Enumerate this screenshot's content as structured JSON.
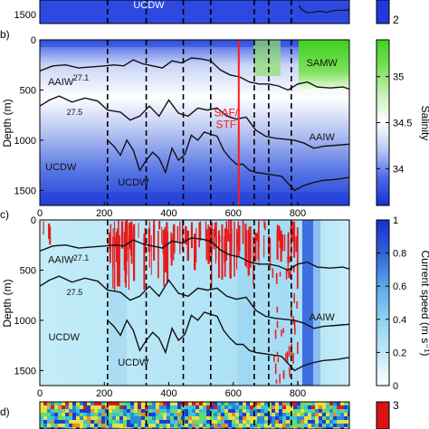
{
  "chart_data": [
    {
      "panel": "",
      "type": "heatmap",
      "ylabel": "",
      "ytick_labels": [
        "1500"
      ],
      "colorbar": {
        "label": "",
        "tick_labels": [
          "2"
        ],
        "colors": [
          "#1f2fd8",
          "#2f4fe8"
        ]
      },
      "water_masses": [
        {
          "label": "UCDW",
          "x": 290,
          "y": 1400
        }
      ]
    },
    {
      "panel": "(b)",
      "type": "heatmap",
      "title": "",
      "xlabel": "",
      "ylabel": "Depth (m)",
      "xlim": [
        0,
        960
      ],
      "ylim": [
        1650,
        0
      ],
      "xticks": [
        0,
        200,
        400,
        600,
        800
      ],
      "xtick_labels": [
        "0",
        "200",
        "400",
        "600",
        "800"
      ],
      "yticks": [
        0,
        500,
        1000,
        1500
      ],
      "ytick_labels": [
        "0",
        "500",
        "1000",
        "1500"
      ],
      "section_breaks": [
        210,
        330,
        445,
        530,
        665,
        710,
        780
      ],
      "front_line": {
        "x": 617,
        "label": "SAF/\nSTF",
        "label_lines": [
          "SAF/",
          "STF"
        ],
        "color": "#ff1a1a"
      },
      "colorbar": {
        "label": "Salinity",
        "range": [
          33.6,
          35.4
        ],
        "ticks": [
          34,
          34.5,
          35
        ],
        "tick_labels": [
          "34",
          "34.5",
          "35"
        ],
        "colors": [
          "#1530d8",
          "#4a6ae8",
          "#b8c8f4",
          "#ffffff",
          "#c8f0b8",
          "#7ee05a",
          "#3cd11e"
        ]
      },
      "contours": [
        {
          "label": "27.1",
          "x": [
            0,
            40,
            80,
            120,
            160,
            200,
            230,
            260,
            290,
            320,
            350,
            380,
            410,
            440,
            470,
            500,
            530,
            560,
            590,
            620,
            650,
            680,
            710,
            740,
            770,
            800,
            830,
            860,
            900,
            940,
            960
          ],
          "y": [
            310,
            260,
            250,
            280,
            270,
            260,
            250,
            260,
            200,
            240,
            260,
            280,
            210,
            230,
            180,
            190,
            210,
            300,
            350,
            370,
            420,
            440,
            440,
            460,
            500,
            440,
            420,
            470,
            480,
            470,
            490
          ]
        },
        {
          "label": "27.5",
          "x": [
            0,
            30,
            60,
            100,
            140,
            180,
            210,
            250,
            280,
            310,
            340,
            370,
            400,
            430,
            460,
            490,
            520,
            550,
            580,
            610,
            640,
            670,
            700,
            730,
            760,
            790,
            820,
            850,
            880,
            920,
            960
          ],
          "y": [
            660,
            600,
            560,
            620,
            580,
            610,
            700,
            720,
            800,
            760,
            660,
            760,
            600,
            730,
            760,
            680,
            700,
            680,
            760,
            790,
            770,
            900,
            960,
            980,
            990,
            1000,
            1030,
            1080,
            1060,
            1050,
            1040
          ]
        },
        {
          "label": "",
          "x": [
            210,
            230,
            250,
            270,
            290,
            310,
            330,
            350,
            370,
            390,
            410,
            430,
            450,
            470,
            490,
            510,
            530,
            550,
            570,
            590,
            610,
            630,
            650,
            670,
            690,
            710,
            730,
            750,
            770,
            790,
            820,
            850,
            880,
            920,
            960
          ],
          "y": [
            1000,
            1060,
            1150,
            1000,
            1100,
            1300,
            1200,
            1120,
            1180,
            1320,
            1080,
            1200,
            1140,
            950,
            1000,
            920,
            940,
            960,
            1100,
            1180,
            1240,
            1240,
            1300,
            1320,
            1330,
            1340,
            1350,
            1360,
            1430,
            1500,
            1450,
            1420,
            1400,
            1390,
            1370
          ]
        }
      ],
      "water_masses": [
        {
          "label": "AAIW",
          "x": 65,
          "y": 450
        },
        {
          "label": "UCDW",
          "x": 65,
          "y": 1300
        },
        {
          "label": "UCDW",
          "x": 290,
          "y": 1450
        },
        {
          "label": "SAMW",
          "x": 875,
          "y": 260
        },
        {
          "label": "AAIW",
          "x": 875,
          "y": 1000
        }
      ]
    },
    {
      "panel": "(c)",
      "type": "heatmap",
      "title": "",
      "xlabel": "",
      "ylabel": "Depth (m)",
      "xlim": [
        0,
        960
      ],
      "ylim": [
        1650,
        0
      ],
      "xticks": [
        0,
        200,
        400,
        600,
        800
      ],
      "xtick_labels": [
        "0",
        "200",
        "400",
        "600",
        "800"
      ],
      "yticks": [
        0,
        500,
        1000,
        1500
      ],
      "ytick_labels": [
        "0",
        "500",
        "1000",
        "1500"
      ],
      "section_breaks": [
        210,
        330,
        445,
        530,
        665,
        710,
        780
      ],
      "colorbar": {
        "label": "Current speed (m s⁻¹)",
        "range": [
          0,
          1
        ],
        "ticks": [
          0,
          0.2,
          0.4,
          0.6,
          0.8,
          1
        ],
        "tick_labels": [
          "0",
          "0.2",
          "0.4",
          "0.6",
          "0.8",
          "1"
        ],
        "colors": [
          "#ffffff",
          "#bfe8f6",
          "#8fd3f0",
          "#5aa8ea",
          "#2f63d8",
          "#1a2fd0"
        ]
      },
      "contours": [
        {
          "label": "27.1",
          "x": [
            0,
            40,
            80,
            120,
            160,
            200,
            230,
            260,
            290,
            320,
            350,
            380,
            410,
            440,
            470,
            500,
            530,
            560,
            590,
            620,
            650,
            680,
            710,
            740,
            770,
            800,
            830,
            860,
            900,
            940,
            960
          ],
          "y": [
            310,
            260,
            250,
            280,
            270,
            260,
            250,
            260,
            200,
            240,
            260,
            280,
            210,
            230,
            180,
            190,
            210,
            300,
            350,
            370,
            420,
            440,
            440,
            460,
            500,
            440,
            420,
            470,
            480,
            470,
            490
          ]
        },
        {
          "label": "27.5",
          "x": [
            0,
            30,
            60,
            100,
            140,
            180,
            210,
            250,
            280,
            310,
            340,
            370,
            400,
            430,
            460,
            490,
            520,
            550,
            580,
            610,
            640,
            670,
            700,
            730,
            760,
            790,
            820,
            850,
            880,
            920,
            960
          ],
          "y": [
            660,
            600,
            560,
            620,
            580,
            610,
            700,
            720,
            800,
            760,
            660,
            760,
            600,
            730,
            760,
            680,
            700,
            680,
            760,
            790,
            770,
            900,
            960,
            980,
            990,
            1000,
            1030,
            1080,
            1060,
            1050,
            1040
          ]
        },
        {
          "label": "",
          "x": [
            210,
            230,
            250,
            270,
            290,
            310,
            330,
            350,
            370,
            390,
            410,
            430,
            450,
            470,
            490,
            510,
            530,
            550,
            570,
            590,
            610,
            630,
            650,
            670,
            690,
            710,
            730,
            750,
            770,
            790,
            820,
            850,
            880,
            920,
            960
          ],
          "y": [
            1000,
            1060,
            1150,
            1000,
            1100,
            1300,
            1200,
            1120,
            1180,
            1320,
            1080,
            1200,
            1140,
            950,
            1000,
            920,
            940,
            960,
            1100,
            1180,
            1240,
            1240,
            1300,
            1320,
            1330,
            1340,
            1350,
            1360,
            1430,
            1500,
            1450,
            1420,
            1400,
            1390,
            1370
          ]
        }
      ],
      "water_masses": [
        {
          "label": "AAIW",
          "x": 65,
          "y": 430
        },
        {
          "label": "UCDW",
          "x": 75,
          "y": 1200
        },
        {
          "label": "UCDW",
          "x": 290,
          "y": 1450
        },
        {
          "label": "AAIW",
          "x": 875,
          "y": 1000
        }
      ]
    },
    {
      "panel": "(d)",
      "type": "heatmap",
      "colorbar": {
        "label": "",
        "tick_labels": [
          "3"
        ],
        "colors": [
          "#e01818",
          "#c81010"
        ]
      }
    }
  ]
}
